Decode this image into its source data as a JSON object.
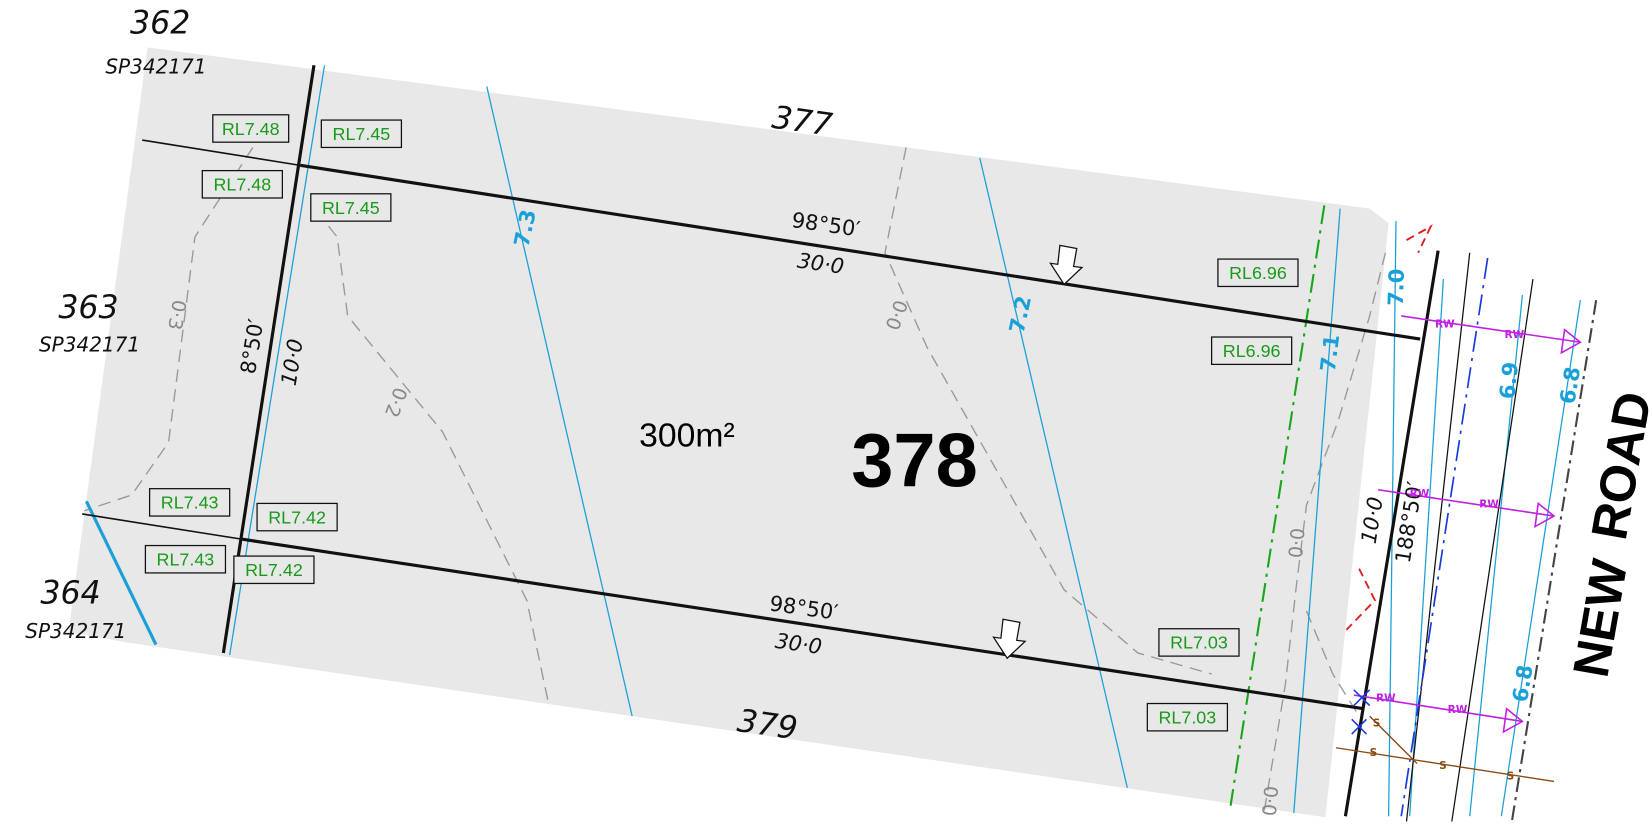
{
  "neighbour_lots": [
    {
      "number": "362",
      "plan": "SP342171"
    },
    {
      "number": "363",
      "plan": "SP342171"
    },
    {
      "number": "364",
      "plan": "SP342171"
    }
  ],
  "adjoining_lots": [
    "377",
    "379"
  ],
  "lot": {
    "number": "378",
    "area": "300m²"
  },
  "boundaries": {
    "top_bearing": "98°50′",
    "top_length": "30·0",
    "bottom_bearing": "98°50′",
    "bottom_length": "30·0",
    "rear_bearing": "8°50′",
    "rear_length": "10·0",
    "front_length": "10·0",
    "front_bearing": "188°50′"
  },
  "levels": [
    "RL7.48",
    "RL7.48",
    "RL7.45",
    "RL7.45",
    "RL6.96",
    "RL6.96",
    "RL7.43",
    "RL7.43",
    "RL7.42",
    "RL7.42",
    "RL7.03",
    "RL7.03"
  ],
  "contours": [
    "7.3",
    "7.2",
    "7.1",
    "7.0",
    "6.9",
    "6.8",
    "6.8"
  ],
  "fill_contours": [
    "0·3",
    "0·2",
    "0·0",
    "0·0",
    "0·0"
  ],
  "road": [
    "NEW",
    "ROAD"
  ],
  "service_labels": [
    "RW",
    "RW",
    "RW",
    "RW",
    "RW",
    "RW",
    "S",
    "S",
    "S",
    "S"
  ]
}
